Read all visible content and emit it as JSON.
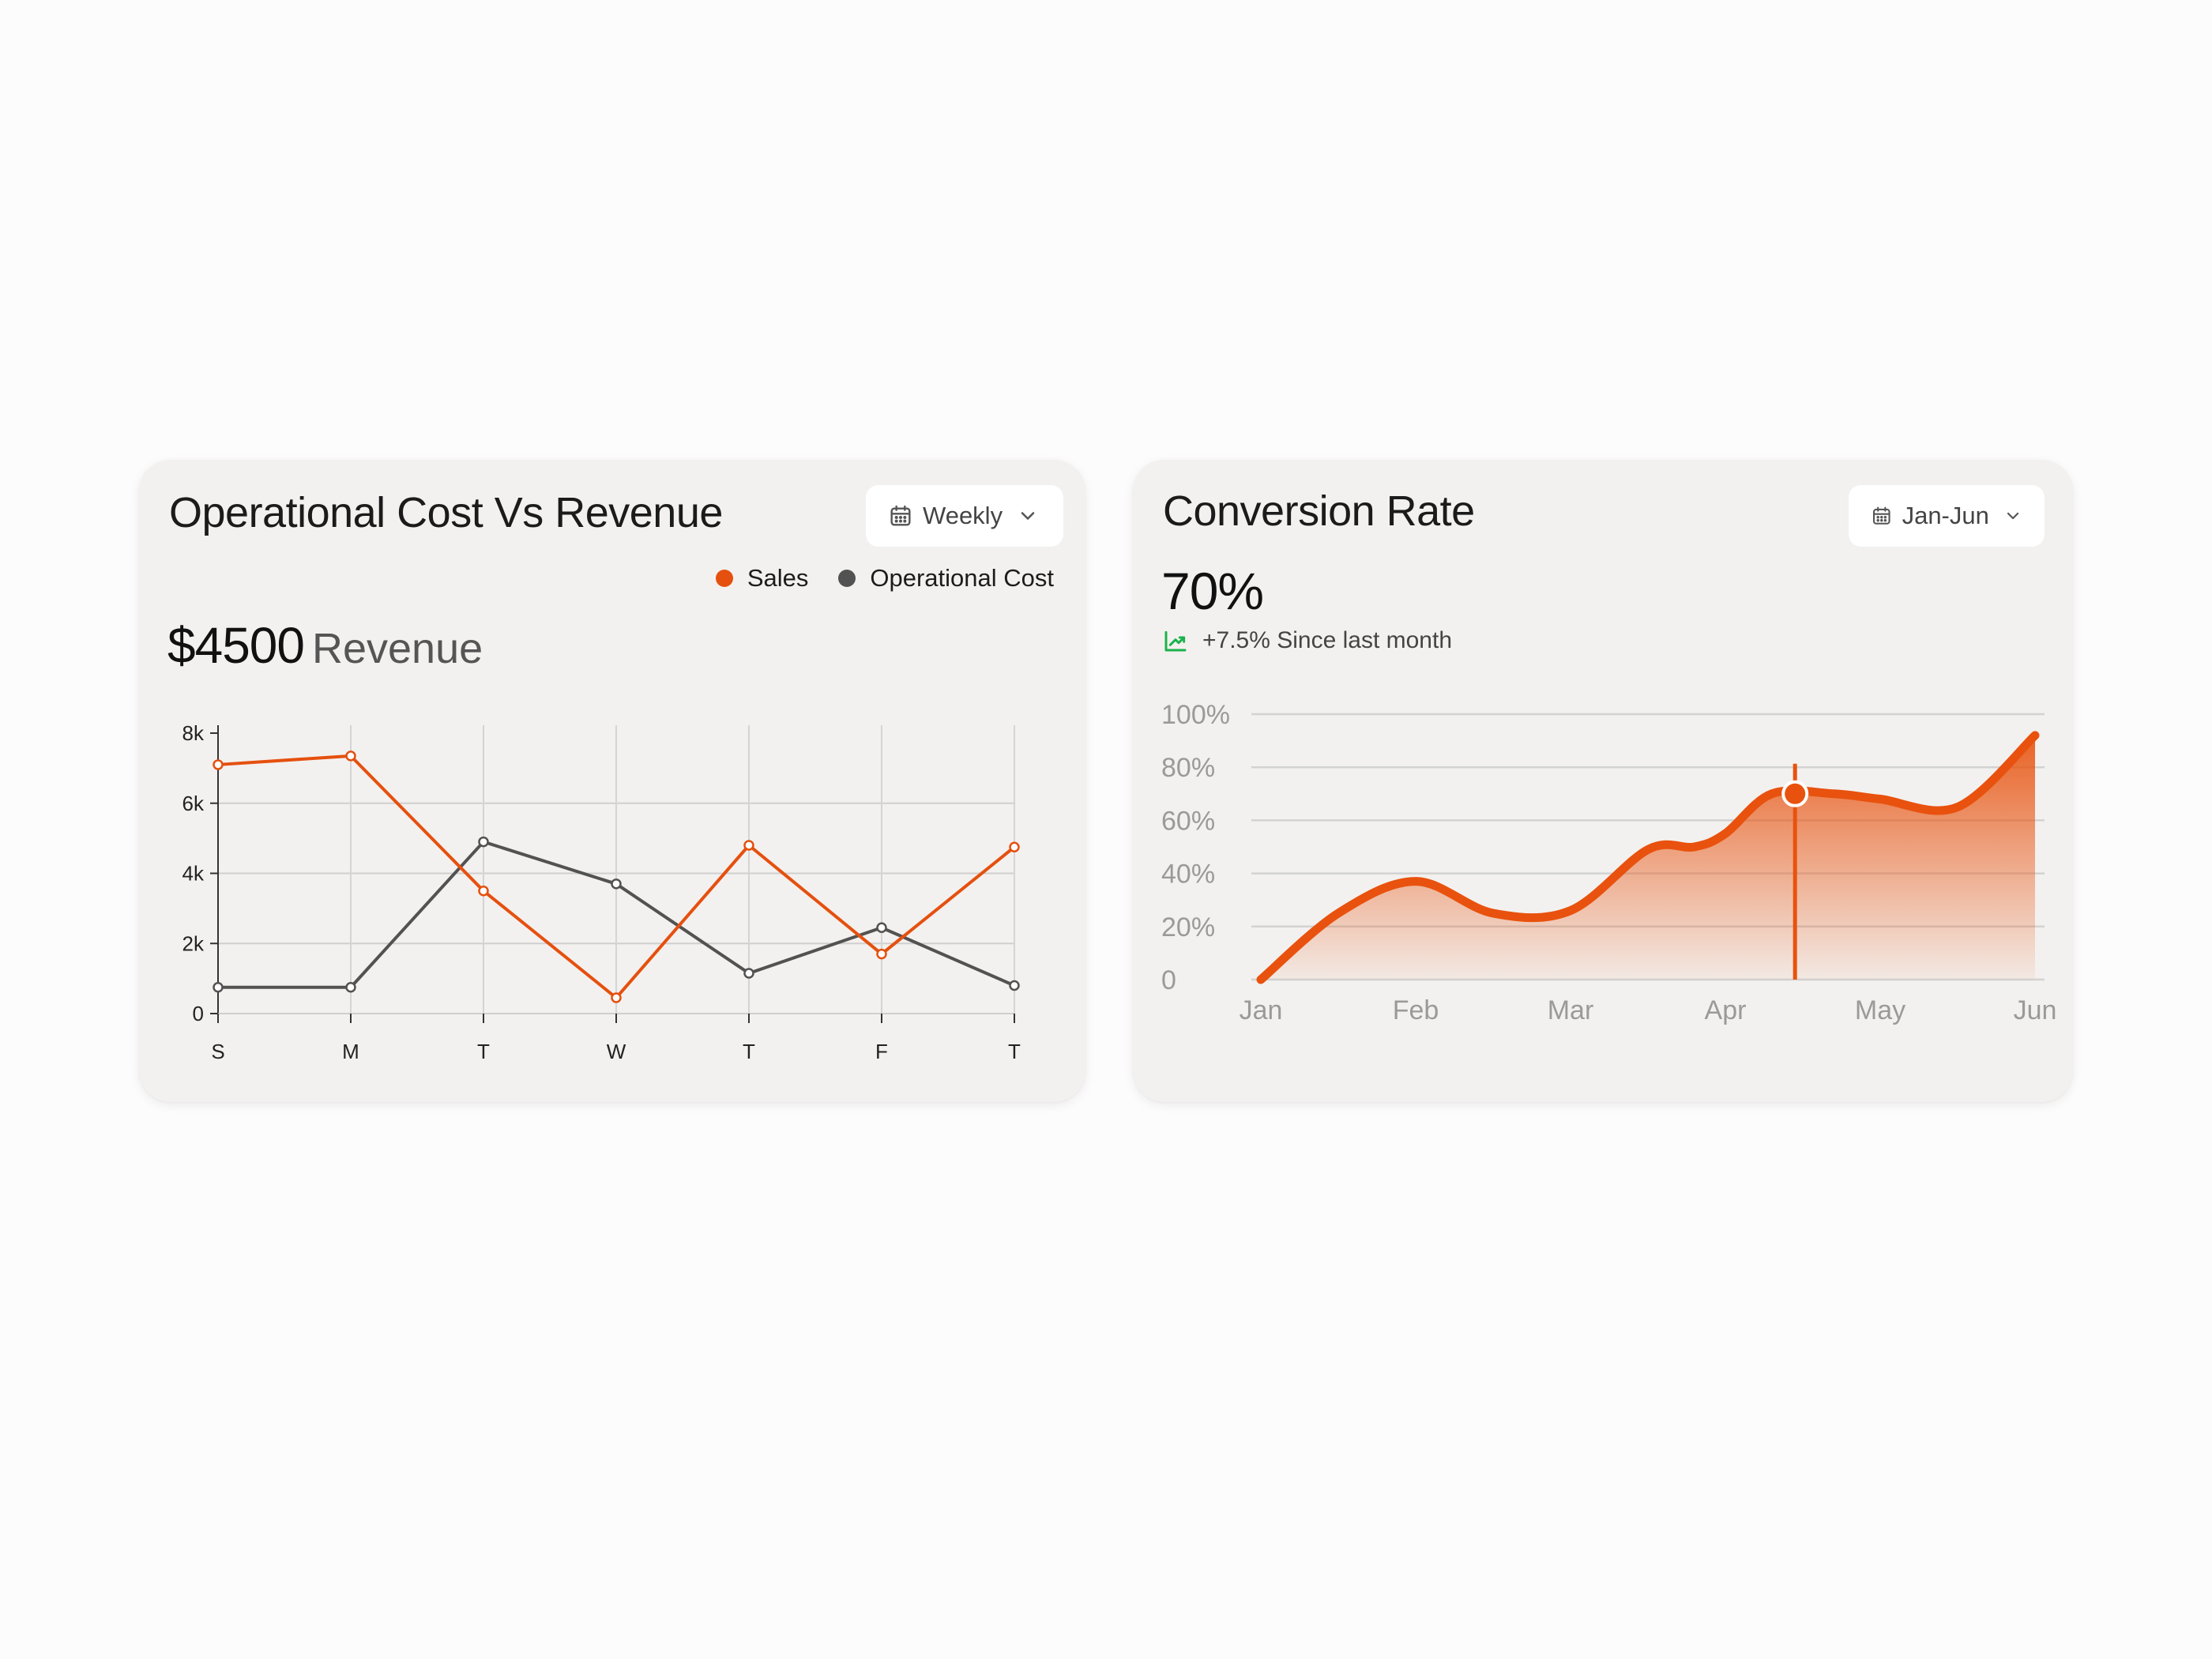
{
  "ops_card": {
    "title": "Operational Cost Vs Revenue",
    "period": "Weekly",
    "revenue_value": "$4500",
    "revenue_label": "Revenue"
  },
  "conv_card": {
    "title": "Conversion Rate",
    "period": "Jan-Jun",
    "value": "70%",
    "delta_text": "+7.5% Since last month"
  },
  "icons": {
    "calendar": "calendar-icon",
    "chevron": "chevron-down-icon",
    "trend": "trend-up-icon"
  },
  "colors": {
    "sales": "#e5500f",
    "operational_cost": "#525252",
    "conversion": "#e8520e",
    "trend_up": "#1bb14b"
  },
  "chart_data": [
    {
      "type": "line",
      "categories": [
        "S",
        "M",
        "T",
        "W",
        "T",
        "F",
        "T"
      ],
      "series": [
        {
          "name": "Sales",
          "values": [
            7100,
            7350,
            3500,
            450,
            4800,
            1700,
            4750
          ]
        },
        {
          "name": "Operational Cost",
          "values": [
            750,
            750,
            4900,
            3700,
            1150,
            2450,
            800
          ]
        }
      ],
      "yticks": [
        0,
        2000,
        4000,
        6000,
        8000
      ],
      "ytick_labels": [
        "0",
        "2k",
        "4k",
        "6k",
        "8k"
      ],
      "ylim": [
        0,
        8000
      ],
      "legend": "top-right",
      "grid": true
    },
    {
      "type": "area",
      "categories": [
        "Jan",
        "Feb",
        "Mar",
        "Apr",
        "May",
        "Jun"
      ],
      "x": [
        0,
        0.5,
        1,
        1.5,
        2,
        2.5,
        2.8,
        3,
        3.3,
        3.7,
        4,
        4.5,
        5
      ],
      "values": [
        0,
        25,
        37,
        25,
        26,
        49,
        50,
        55,
        70,
        70,
        68,
        65,
        92
      ],
      "highlight": {
        "x": 3.45,
        "value": 70
      },
      "yticks": [
        0,
        20,
        40,
        60,
        80,
        100
      ],
      "ytick_labels": [
        "0",
        "20%",
        "40%",
        "60%",
        "80%",
        "100%"
      ],
      "ylim": [
        0,
        100
      ],
      "grid": true
    }
  ]
}
